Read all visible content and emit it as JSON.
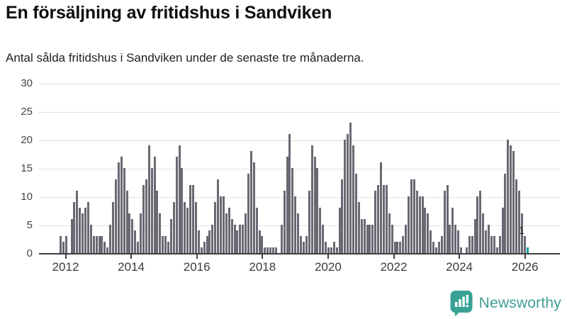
{
  "title": "En försäljning av fritidshus i Sandviken",
  "subtitle": "Antal sålda fritidshus i Sandviken under de senaste tre månaderna.",
  "branding": {
    "name": "Newsworthy",
    "logo_color": "#38a294",
    "text_color": "#3f9f92"
  },
  "chart_data": {
    "type": "bar",
    "title": "En försäljning av fritidshus i Sandviken",
    "subtitle": "Antal sålda fritidshus i Sandviken under de senaste tre månaderna.",
    "ylabel": "",
    "xlabel": "",
    "ylim": [
      0,
      30
    ],
    "y_ticks": [
      0,
      5,
      10,
      15,
      20,
      25,
      30
    ],
    "x_tick_labels": [
      "2012",
      "2014",
      "2016",
      "2018",
      "2020",
      "2022",
      "2024",
      "2026"
    ],
    "frequency": "monthly",
    "grid": true,
    "values": [
      3,
      2,
      3,
      0,
      6,
      9,
      11,
      8,
      7,
      8,
      9,
      5,
      3,
      3,
      3,
      3,
      2,
      1,
      5,
      9,
      13,
      16,
      17,
      15,
      11,
      7,
      6,
      4,
      2,
      7,
      12,
      13,
      19,
      15,
      17,
      11,
      7,
      3,
      3,
      2,
      6,
      9,
      17,
      19,
      15,
      9,
      8,
      12,
      12,
      9,
      4,
      1,
      2,
      3,
      4,
      5,
      9,
      13,
      10,
      10,
      7,
      8,
      6,
      5,
      4,
      5,
      5,
      7,
      14,
      18,
      16,
      8,
      4,
      3,
      1,
      1,
      1,
      1,
      1,
      0,
      5,
      11,
      17,
      21,
      15,
      10,
      7,
      3,
      2,
      3,
      11,
      19,
      17,
      15,
      8,
      5,
      2,
      1,
      1,
      2,
      1,
      8,
      13,
      20,
      21,
      23,
      19,
      14,
      9,
      6,
      6,
      5,
      5,
      5,
      11,
      12,
      16,
      12,
      12,
      7,
      5,
      2,
      2,
      2,
      3,
      5,
      10,
      13,
      13,
      11,
      10,
      10,
      8,
      7,
      4,
      2,
      1,
      2,
      3,
      11,
      12,
      5,
      8,
      5,
      4,
      1,
      0,
      1,
      3,
      3,
      6,
      10,
      11,
      7,
      4,
      5,
      3,
      3,
      1,
      3,
      8,
      14,
      20,
      19,
      18,
      13,
      11,
      7,
      3,
      1
    ],
    "highlight": {
      "index": 169,
      "value": 1,
      "label": "1"
    },
    "colors": {
      "bar": "#686972",
      "highlight": "#0aa49c",
      "grid": "#e2e2e2",
      "axis": "#3f3f3f"
    }
  }
}
